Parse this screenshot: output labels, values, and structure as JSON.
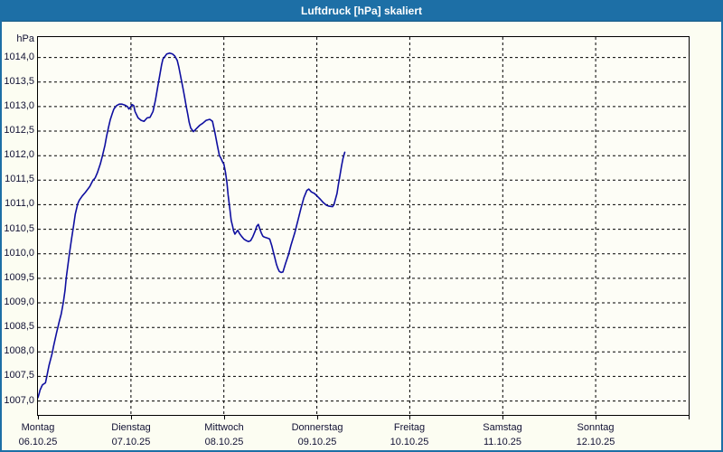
{
  "window_title": "Luftdruck [hPa] skaliert",
  "colors": {
    "titlebar": "#1d6fa6",
    "window_border": "#1d6fa6",
    "background": "#fcfdf2",
    "grid": "#000000",
    "curve": "#0f0fa0",
    "label_text": "#111133"
  },
  "y_axis": {
    "unit": "hPa",
    "tick_labels": [
      "1014,0",
      "1013,5",
      "1013,0",
      "1012,5",
      "1012,0",
      "1011,5",
      "1011,0",
      "1010,5",
      "1010,0",
      "1009,5",
      "1009,0",
      "1008,5",
      "1008,0",
      "1007,5",
      "1007,0"
    ]
  },
  "x_axis": {
    "days": [
      {
        "name": "Montag",
        "date": "06.10.25"
      },
      {
        "name": "Dienstag",
        "date": "07.10.25"
      },
      {
        "name": "Mittwoch",
        "date": "08.10.25"
      },
      {
        "name": "Donnerstag",
        "date": "09.10.25"
      },
      {
        "name": "Freitag",
        "date": "10.10.25"
      },
      {
        "name": "Samstag",
        "date": "11.10.25"
      },
      {
        "name": "Sonntag",
        "date": "12.10.25"
      }
    ]
  },
  "chart_data": {
    "type": "line",
    "title": "Luftdruck [hPa] skaliert",
    "ylabel": "hPa",
    "ylim": [
      1007.0,
      1014.0
    ],
    "y_tick_step": 0.5,
    "x_range_days": [
      0,
      7
    ],
    "x_unit": "days since Montag 06.10.25 00:00",
    "grid": "dashed",
    "legend_position": "none",
    "series": [
      {
        "name": "Luftdruck [hPa]",
        "color": "#0f0fa0",
        "points": [
          [
            0.0,
            1007.07
          ],
          [
            0.013,
            1007.15
          ],
          [
            0.022,
            1007.22
          ],
          [
            0.036,
            1007.28
          ],
          [
            0.049,
            1007.33
          ],
          [
            0.081,
            1007.37
          ],
          [
            0.088,
            1007.44
          ],
          [
            0.097,
            1007.52
          ],
          [
            0.11,
            1007.64
          ],
          [
            0.12,
            1007.73
          ],
          [
            0.136,
            1007.85
          ],
          [
            0.153,
            1007.97
          ],
          [
            0.168,
            1008.12
          ],
          [
            0.185,
            1008.26
          ],
          [
            0.201,
            1008.4
          ],
          [
            0.217,
            1008.52
          ],
          [
            0.227,
            1008.6
          ],
          [
            0.25,
            1008.77
          ],
          [
            0.272,
            1009.0
          ],
          [
            0.292,
            1009.26
          ],
          [
            0.304,
            1009.51
          ],
          [
            0.324,
            1009.79
          ],
          [
            0.338,
            1010.0
          ],
          [
            0.363,
            1010.32
          ],
          [
            0.379,
            1010.52
          ],
          [
            0.402,
            1010.81
          ],
          [
            0.428,
            1011.02
          ],
          [
            0.444,
            1011.09
          ],
          [
            0.477,
            1011.18
          ],
          [
            0.509,
            1011.25
          ],
          [
            0.557,
            1011.37
          ],
          [
            0.59,
            1011.49
          ],
          [
            0.616,
            1011.55
          ],
          [
            0.639,
            1011.65
          ],
          [
            0.671,
            1011.83
          ],
          [
            0.694,
            1012.0
          ],
          [
            0.72,
            1012.21
          ],
          [
            0.739,
            1012.4
          ],
          [
            0.759,
            1012.58
          ],
          [
            0.778,
            1012.73
          ],
          [
            0.798,
            1012.85
          ],
          [
            0.817,
            1012.95
          ],
          [
            0.846,
            1013.02
          ],
          [
            0.875,
            1013.05
          ],
          [
            0.905,
            1013.05
          ],
          [
            0.934,
            1013.03
          ],
          [
            0.963,
            1013.0
          ],
          [
            0.978,
            1012.95
          ],
          [
            0.992,
            1012.98
          ],
          [
            1.012,
            1013.04
          ],
          [
            1.031,
            1013.02
          ],
          [
            1.044,
            1012.9
          ],
          [
            1.077,
            1012.77
          ],
          [
            1.109,
            1012.72
          ],
          [
            1.141,
            1012.7
          ],
          [
            1.174,
            1012.77
          ],
          [
            1.206,
            1012.78
          ],
          [
            1.238,
            1012.9
          ],
          [
            1.265,
            1013.14
          ],
          [
            1.287,
            1013.39
          ],
          [
            1.31,
            1013.63
          ],
          [
            1.33,
            1013.85
          ],
          [
            1.345,
            1013.97
          ],
          [
            1.369,
            1014.03
          ],
          [
            1.384,
            1014.07
          ],
          [
            1.417,
            1014.09
          ],
          [
            1.449,
            1014.07
          ],
          [
            1.472,
            1014.03
          ],
          [
            1.498,
            1013.94
          ],
          [
            1.514,
            1013.82
          ],
          [
            1.53,
            1013.66
          ],
          [
            1.547,
            1013.5
          ],
          [
            1.563,
            1013.34
          ],
          [
            1.579,
            1013.18
          ],
          [
            1.595,
            1013.0
          ],
          [
            1.612,
            1012.84
          ],
          [
            1.627,
            1012.68
          ],
          [
            1.644,
            1012.56
          ],
          [
            1.673,
            1012.49
          ],
          [
            1.709,
            1012.56
          ],
          [
            1.741,
            1012.62
          ],
          [
            1.773,
            1012.66
          ],
          [
            1.809,
            1012.72
          ],
          [
            1.848,
            1012.74
          ],
          [
            1.877,
            1012.7
          ],
          [
            1.906,
            1012.45
          ],
          [
            1.931,
            1012.2
          ],
          [
            1.952,
            1012.0
          ],
          [
            1.968,
            1011.95
          ],
          [
            1.984,
            1011.88
          ],
          [
            2.001,
            1011.82
          ],
          [
            2.017,
            1011.66
          ],
          [
            2.033,
            1011.45
          ],
          [
            2.046,
            1011.2
          ],
          [
            2.062,
            1010.95
          ],
          [
            2.079,
            1010.68
          ],
          [
            2.094,
            1010.56
          ],
          [
            2.104,
            1010.47
          ],
          [
            2.118,
            1010.4
          ],
          [
            2.137,
            1010.45
          ],
          [
            2.15,
            1010.48
          ],
          [
            2.169,
            1010.41
          ],
          [
            2.192,
            1010.35
          ],
          [
            2.215,
            1010.3
          ],
          [
            2.24,
            1010.27
          ],
          [
            2.266,
            1010.25
          ],
          [
            2.289,
            1010.27
          ],
          [
            2.312,
            1010.35
          ],
          [
            2.338,
            1010.47
          ],
          [
            2.354,
            1010.56
          ],
          [
            2.371,
            1010.6
          ],
          [
            2.386,
            1010.51
          ],
          [
            2.403,
            1010.42
          ],
          [
            2.419,
            1010.36
          ],
          [
            2.435,
            1010.34
          ],
          [
            2.468,
            1010.32
          ],
          [
            2.493,
            1010.3
          ],
          [
            2.516,
            1010.16
          ],
          [
            2.532,
            1010.04
          ],
          [
            2.549,
            1009.91
          ],
          [
            2.565,
            1009.79
          ],
          [
            2.581,
            1009.7
          ],
          [
            2.597,
            1009.64
          ],
          [
            2.617,
            1009.62
          ],
          [
            2.636,
            1009.63
          ],
          [
            2.663,
            1009.8
          ],
          [
            2.695,
            1009.98
          ],
          [
            2.721,
            1010.17
          ],
          [
            2.763,
            1010.43
          ],
          [
            2.795,
            1010.67
          ],
          [
            2.828,
            1010.92
          ],
          [
            2.86,
            1011.14
          ],
          [
            2.892,
            1011.29
          ],
          [
            2.914,
            1011.32
          ],
          [
            2.941,
            1011.26
          ],
          [
            2.974,
            1011.23
          ],
          [
            3.006,
            1011.17
          ],
          [
            3.038,
            1011.11
          ],
          [
            3.071,
            1011.04
          ],
          [
            3.103,
            1010.99
          ],
          [
            3.132,
            1010.97
          ],
          [
            3.168,
            1010.96
          ],
          [
            3.184,
            1011.0
          ],
          [
            3.217,
            1011.23
          ],
          [
            3.233,
            1011.42
          ],
          [
            3.249,
            1011.6
          ],
          [
            3.266,
            1011.79
          ],
          [
            3.281,
            1011.94
          ],
          [
            3.301,
            1012.07
          ]
        ]
      }
    ]
  }
}
